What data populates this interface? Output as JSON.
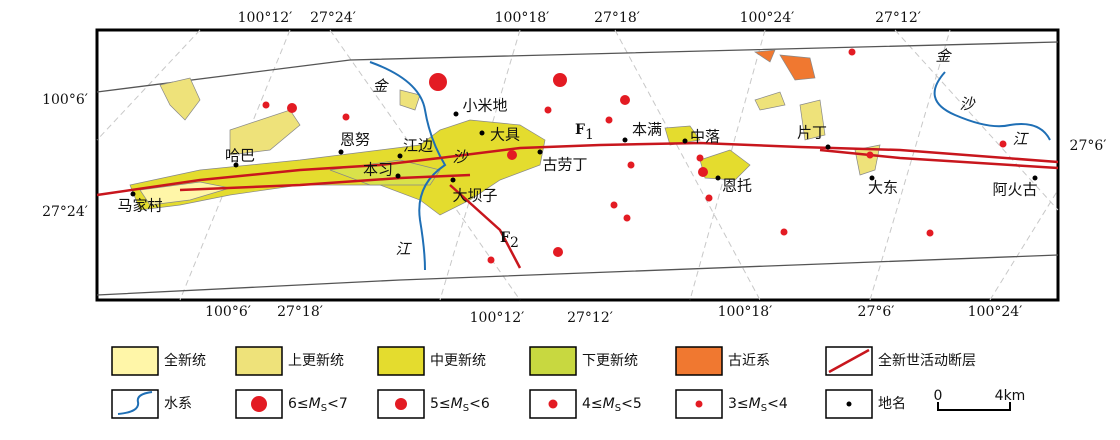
{
  "coordinates": {
    "top": [
      "100°12′",
      "27°24′",
      "100°18′",
      "27°18′",
      "100°24′",
      "27°12′"
    ],
    "left": [
      "100°6′",
      "27°24′"
    ],
    "right": [
      "27°6′"
    ],
    "bottom": [
      "100°6′",
      "27°18′",
      "100°12′",
      "27°12′",
      "100°18′",
      "27°6′",
      "100°24′"
    ]
  },
  "places": [
    "小米地",
    "大具",
    "本满",
    "中落",
    "片丁",
    "哈巴",
    "恩努",
    "江边",
    "本习",
    "古劳丁",
    "大坝子",
    "恩托",
    "大东",
    "阿火古",
    "马家村"
  ],
  "rivers": [
    "金",
    "沙",
    "江",
    "金",
    "沙",
    "江"
  ],
  "faults": [
    {
      "name": "F",
      "sub": "1"
    },
    {
      "name": "F",
      "sub": "2"
    }
  ],
  "legend": {
    "strata": [
      "全新统",
      "上更新统",
      "中更新统",
      "下更新统",
      "古近系",
      "全新世活动断层"
    ],
    "water": "水系",
    "magnitudes": [
      {
        "prefix": "6≤",
        "symbol": "M",
        "sub": "S",
        "suffix": "<7"
      },
      {
        "prefix": "5≤",
        "symbol": "M",
        "sub": "S",
        "suffix": "<6"
      },
      {
        "prefix": "4≤",
        "symbol": "M",
        "sub": "S",
        "suffix": "<5"
      },
      {
        "prefix": "3≤",
        "symbol": "M",
        "sub": "S",
        "suffix": "<4"
      }
    ],
    "place": "地名",
    "scale": [
      "0",
      "4km"
    ]
  }
}
